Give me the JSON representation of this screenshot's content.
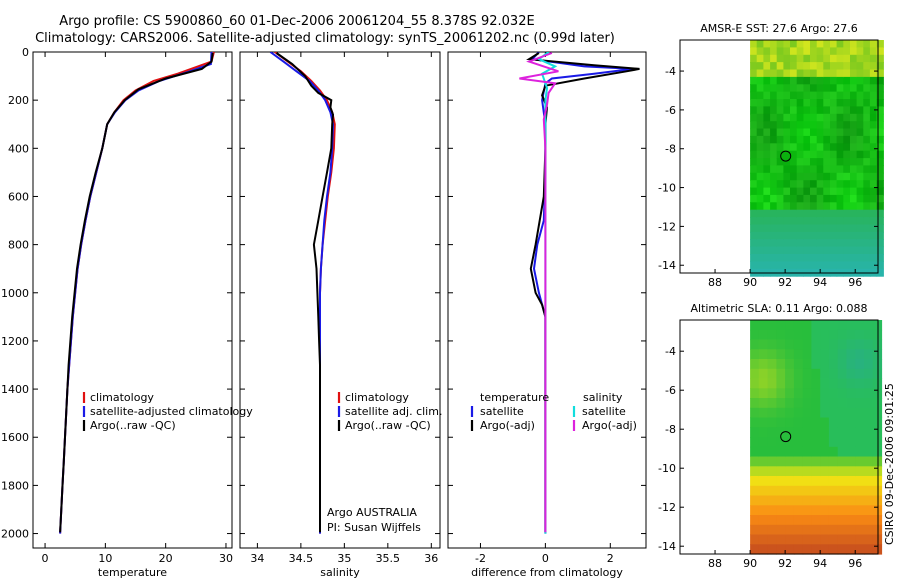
{
  "header": {
    "line1": "Argo profile: CS 5900860_60 01-Dec-2006 20061204_55 8.378S 92.032E",
    "line2": "Climatology: CARS2006. Satellite-adjusted climatology: synTS_20061202.nc (0.99d later)"
  },
  "side_stamp": "CSIRO 09-Dec-2006 09:01:25",
  "colors": {
    "climatology": "#e01010",
    "satellite": "#1a1ae6",
    "argo": "#000000",
    "salinity_satellite": "#11dddd",
    "salinity_argo": "#dd22dd"
  },
  "chart_data": [
    {
      "type": "line",
      "id": "temperature",
      "xlabel": "temperature",
      "ylabel": "",
      "xlim": [
        -2,
        31
      ],
      "ylim": [
        0,
        2060
      ],
      "y_inverted": true,
      "xticks": [
        0,
        10,
        20,
        30
      ],
      "yticks": [
        0,
        200,
        400,
        600,
        800,
        1000,
        1200,
        1400,
        1600,
        1800,
        2000
      ],
      "legend": [
        "climatology",
        "satellite-adjusted climatology",
        "Argo(..raw -QC)"
      ],
      "series": [
        {
          "name": "climatology",
          "color_key": "climatology",
          "points": [
            [
              28,
              0
            ],
            [
              27.6,
              40
            ],
            [
              22,
              90
            ],
            [
              18,
              120
            ],
            [
              15,
              160
            ],
            [
              13,
              200
            ],
            [
              11.5,
              250
            ],
            [
              10.3,
              300
            ],
            [
              9.5,
              400
            ],
            [
              8.5,
              500
            ],
            [
              7.5,
              600
            ],
            [
              6.7,
              700
            ],
            [
              6,
              800
            ],
            [
              5.4,
              900
            ],
            [
              5,
              1000
            ],
            [
              4.6,
              1100
            ],
            [
              4.3,
              1200
            ],
            [
              4,
              1300
            ],
            [
              3.7,
              1400
            ],
            [
              3.5,
              1500
            ],
            [
              3.3,
              1600
            ],
            [
              3.1,
              1700
            ],
            [
              2.9,
              1800
            ],
            [
              2.7,
              1900
            ],
            [
              2.5,
              2000
            ]
          ]
        },
        {
          "name": "satellite-adjusted climatology",
          "color_key": "satellite",
          "points": [
            [
              27.6,
              0
            ],
            [
              27.5,
              50
            ],
            [
              24,
              80
            ],
            [
              19,
              120
            ],
            [
              15.5,
              160
            ],
            [
              13.3,
              200
            ],
            [
              11.6,
              250
            ],
            [
              10.3,
              300
            ],
            [
              9.5,
              400
            ],
            [
              8.5,
              500
            ],
            [
              7.5,
              600
            ],
            [
              6.7,
              700
            ],
            [
              6,
              800
            ],
            [
              5.4,
              900
            ],
            [
              5,
              1000
            ],
            [
              4.6,
              1100
            ],
            [
              4.3,
              1200
            ],
            [
              4,
              1300
            ],
            [
              3.7,
              1400
            ],
            [
              3.5,
              1500
            ],
            [
              3.3,
              1600
            ],
            [
              3.1,
              1700
            ],
            [
              2.9,
              1800
            ],
            [
              2.7,
              1900
            ],
            [
              2.5,
              2000
            ]
          ]
        },
        {
          "name": "Argo(..raw -QC)",
          "color_key": "argo",
          "points": [
            [
              27.8,
              4
            ],
            [
              27.6,
              40
            ],
            [
              26,
              70
            ],
            [
              20,
              110
            ],
            [
              15.5,
              155
            ],
            [
              13.2,
              200
            ],
            [
              11.5,
              250
            ],
            [
              10.3,
              300
            ],
            [
              9.5,
              400
            ],
            [
              8.4,
              500
            ],
            [
              7.4,
              600
            ],
            [
              6.6,
              700
            ],
            [
              5.9,
              800
            ],
            [
              5.3,
              900
            ],
            [
              4.9,
              1000
            ],
            [
              4.5,
              1100
            ],
            [
              4.2,
              1200
            ],
            [
              3.9,
              1300
            ],
            [
              3.7,
              1400
            ],
            [
              3.5,
              1500
            ],
            [
              3.3,
              1600
            ],
            [
              3.1,
              1700
            ],
            [
              2.9,
              1800
            ],
            [
              2.7,
              1900
            ],
            [
              2.5,
              1995
            ]
          ]
        }
      ]
    },
    {
      "type": "line",
      "id": "salinity",
      "xlabel": "salinity",
      "ylabel": "",
      "xlim": [
        33.8,
        36.1
      ],
      "ylim": [
        0,
        2060
      ],
      "y_inverted": true,
      "xticks": [
        34,
        34.5,
        35,
        35.5,
        36
      ],
      "legend": [
        "climatology",
        "satellite adj. clim.",
        "Argo(..raw -QC)"
      ],
      "annotation": [
        "Argo AUSTRALIA",
        "PI: Susan Wijffels"
      ],
      "series": [
        {
          "name": "climatology",
          "color_key": "climatology",
          "points": [
            [
              34.2,
              0
            ],
            [
              34.35,
              40
            ],
            [
              34.5,
              80
            ],
            [
              34.62,
              120
            ],
            [
              34.72,
              160
            ],
            [
              34.8,
              200
            ],
            [
              34.86,
              250
            ],
            [
              34.89,
              300
            ],
            [
              34.88,
              400
            ],
            [
              34.85,
              500
            ],
            [
              34.81,
              600
            ],
            [
              34.78,
              700
            ],
            [
              34.75,
              800
            ],
            [
              34.73,
              900
            ],
            [
              34.72,
              1000
            ],
            [
              34.72,
              1200
            ],
            [
              34.72,
              1400
            ],
            [
              34.72,
              1600
            ],
            [
              34.72,
              1800
            ],
            [
              34.72,
              2000
            ]
          ]
        },
        {
          "name": "satellite adj. clim.",
          "color_key": "satellite",
          "points": [
            [
              34.15,
              0
            ],
            [
              34.3,
              40
            ],
            [
              34.45,
              80
            ],
            [
              34.6,
              120
            ],
            [
              34.7,
              160
            ],
            [
              34.78,
              200
            ],
            [
              34.84,
              250
            ],
            [
              34.87,
              300
            ],
            [
              34.86,
              400
            ],
            [
              34.84,
              500
            ],
            [
              34.8,
              600
            ],
            [
              34.77,
              700
            ],
            [
              34.75,
              800
            ],
            [
              34.73,
              900
            ],
            [
              34.72,
              1000
            ],
            [
              34.72,
              1200
            ],
            [
              34.72,
              1400
            ],
            [
              34.72,
              1600
            ],
            [
              34.72,
              1800
            ],
            [
              34.72,
              2000
            ]
          ]
        },
        {
          "name": "Argo(..raw -QC)",
          "color_key": "argo",
          "points": [
            [
              34.22,
              4
            ],
            [
              34.4,
              50
            ],
            [
              34.55,
              100
            ],
            [
              34.62,
              140
            ],
            [
              34.7,
              170
            ],
            [
              34.85,
              200
            ],
            [
              34.84,
              230
            ],
            [
              34.87,
              260
            ],
            [
              34.86,
              300
            ],
            [
              34.85,
              400
            ],
            [
              34.8,
              500
            ],
            [
              34.75,
              600
            ],
            [
              34.7,
              700
            ],
            [
              34.65,
              800
            ],
            [
              34.68,
              900
            ],
            [
              34.69,
              1000
            ],
            [
              34.7,
              1100
            ],
            [
              34.71,
              1200
            ],
            [
              34.72,
              1300
            ],
            [
              34.72,
              1400
            ],
            [
              34.72,
              1600
            ],
            [
              34.72,
              1800
            ],
            [
              34.72,
              1995
            ]
          ]
        }
      ]
    },
    {
      "type": "line",
      "id": "difference",
      "xlabel": "difference from climatology",
      "ylabel": "",
      "xlim": [
        -3,
        3.1
      ],
      "ylim": [
        0,
        2060
      ],
      "y_inverted": true,
      "xticks": [
        -2,
        0,
        2
      ],
      "legend_temperature_heading": "temperature",
      "legend_salinity_heading": "salinity",
      "legend": [
        "satellite",
        "Argo(-adj)",
        "satellite",
        "Argo(-adj)"
      ],
      "series": [
        {
          "name": "temperature satellite",
          "color_key": "satellite",
          "points": [
            [
              -0.2,
              0
            ],
            [
              -0.4,
              30
            ],
            [
              1.2,
              60
            ],
            [
              2.7,
              70
            ],
            [
              1.5,
              90
            ],
            [
              0.2,
              110
            ],
            [
              0,
              130
            ],
            [
              -0.1,
              200
            ],
            [
              0,
              300
            ],
            [
              0,
              400
            ],
            [
              0,
              500
            ],
            [
              -0.05,
              700
            ],
            [
              -0.25,
              800
            ],
            [
              -0.35,
              900
            ],
            [
              -0.2,
              1000
            ],
            [
              0,
              1100
            ],
            [
              0,
              1200
            ],
            [
              0,
              2000
            ]
          ]
        },
        {
          "name": "temperature Argo(-adj)",
          "color_key": "argo",
          "points": [
            [
              -0.2,
              4
            ],
            [
              -0.5,
              30
            ],
            [
              1.5,
              55
            ],
            [
              2.9,
              70
            ],
            [
              2.5,
              80
            ],
            [
              1.2,
              110
            ],
            [
              0,
              140
            ],
            [
              -0.1,
              180
            ],
            [
              0.05,
              230
            ],
            [
              0,
              300
            ],
            [
              0,
              400
            ],
            [
              -0.05,
              600
            ],
            [
              -0.3,
              800
            ],
            [
              -0.45,
              900
            ],
            [
              -0.3,
              1000
            ],
            [
              -0.1,
              1050
            ],
            [
              0,
              1100
            ],
            [
              0,
              1200
            ],
            [
              0,
              1995
            ]
          ]
        },
        {
          "name": "salinity satellite",
          "color_key": "salinity_satellite",
          "points": [
            [
              0.1,
              0
            ],
            [
              -0.2,
              30
            ],
            [
              0.3,
              60
            ],
            [
              -0.1,
              90
            ],
            [
              0.05,
              150
            ],
            [
              0,
              200
            ],
            [
              0,
              400
            ],
            [
              0,
              600
            ],
            [
              0,
              800
            ],
            [
              0,
              1000
            ],
            [
              0,
              1200
            ],
            [
              0,
              1400
            ],
            [
              0,
              1600
            ],
            [
              0,
              1800
            ],
            [
              0,
              2000
            ]
          ]
        },
        {
          "name": "salinity Argo(-adj)",
          "color_key": "salinity_argo",
          "points": [
            [
              0.2,
              4
            ],
            [
              -0.5,
              40
            ],
            [
              0.4,
              80
            ],
            [
              -0.8,
              110
            ],
            [
              0.3,
              130
            ],
            [
              0.1,
              170
            ],
            [
              0.05,
              220
            ],
            [
              -0.05,
              280
            ],
            [
              0,
              400
            ],
            [
              0,
              600
            ],
            [
              0,
              800
            ],
            [
              0,
              1000
            ],
            [
              0,
              1200
            ],
            [
              0,
              1400
            ],
            [
              0,
              1600
            ],
            [
              0,
              1800
            ],
            [
              0,
              1995
            ]
          ]
        }
      ]
    },
    {
      "type": "heatmap",
      "id": "sst_map",
      "title": "AMSR-E SST: 27.6 Argo: 27.6",
      "xlim": [
        86,
        97.3
      ],
      "ylim": [
        -14.4,
        -2.4
      ],
      "xticks": [
        88,
        90,
        92,
        94,
        96
      ],
      "yticks": [
        -4,
        -6,
        -8,
        -10,
        -12,
        -14
      ],
      "data_lon_start": 90,
      "argo_position": [
        92.032,
        -8.378
      ]
    },
    {
      "type": "heatmap",
      "id": "sla_map",
      "title": "Altimetric SLA: 0.11 Argo: 0.088",
      "xlim": [
        86,
        97.3
      ],
      "ylim": [
        -14.4,
        -2.4
      ],
      "xticks": [
        88,
        90,
        92,
        94,
        96
      ],
      "yticks": [
        -4,
        -6,
        -8,
        -10,
        -12,
        -14
      ],
      "data_lon_start": 90,
      "argo_position": [
        92.032,
        -8.378
      ]
    }
  ]
}
